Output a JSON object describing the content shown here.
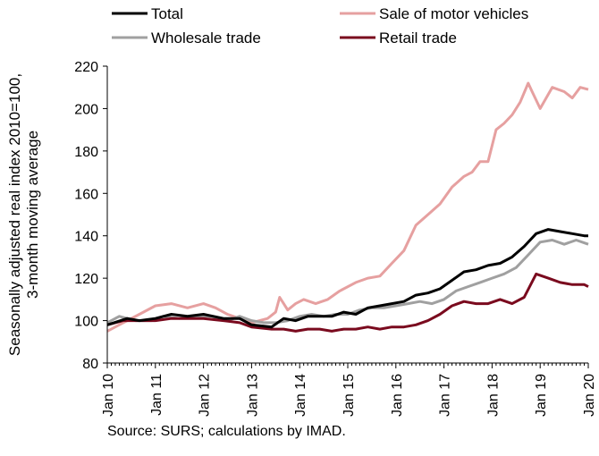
{
  "chart_data": {
    "type": "line",
    "ylabel": [
      "Seasonally adjusted real index 2010=100,",
      "3-month moving average"
    ],
    "source": "Source: SURS; calculations by IMAD.",
    "ylim": [
      80,
      220
    ],
    "yticks": [
      80,
      100,
      120,
      140,
      160,
      180,
      200,
      220
    ],
    "grid": false,
    "legend_position": "top",
    "xlim": [
      "2010-01",
      "2020-01"
    ],
    "xtick_labels": [
      "Jan 10",
      "Jan 11",
      "Jan 12",
      "Jan 13",
      "Jan 14",
      "Jan 15",
      "Jan 16",
      "Jan 17",
      "Jan 18",
      "Jan 19",
      "Jan 20"
    ],
    "series": [
      {
        "name": "Total",
        "color": "#000000",
        "points": [
          [
            "2010-01",
            98
          ],
          [
            "2010-06",
            101
          ],
          [
            "2010-09",
            100
          ],
          [
            "2011-01",
            101
          ],
          [
            "2011-05",
            103
          ],
          [
            "2011-09",
            102
          ],
          [
            "2012-01",
            103
          ],
          [
            "2012-06",
            101
          ],
          [
            "2012-10",
            101
          ],
          [
            "2013-01",
            98
          ],
          [
            "2013-06",
            97
          ],
          [
            "2013-09",
            101
          ],
          [
            "2013-12",
            100
          ],
          [
            "2014-03",
            102
          ],
          [
            "2014-06",
            102
          ],
          [
            "2014-09",
            102
          ],
          [
            "2014-12",
            104
          ],
          [
            "2015-03",
            103
          ],
          [
            "2015-06",
            106
          ],
          [
            "2015-09",
            107
          ],
          [
            "2015-12",
            108
          ],
          [
            "2016-03",
            109
          ],
          [
            "2016-06",
            112
          ],
          [
            "2016-09",
            113
          ],
          [
            "2016-12",
            115
          ],
          [
            "2017-03",
            119
          ],
          [
            "2017-06",
            123
          ],
          [
            "2017-09",
            124
          ],
          [
            "2017-12",
            126
          ],
          [
            "2018-03",
            127
          ],
          [
            "2018-06",
            130
          ],
          [
            "2018-09",
            135
          ],
          [
            "2018-12",
            141
          ],
          [
            "2019-03",
            143
          ],
          [
            "2019-06",
            142
          ],
          [
            "2019-09",
            141
          ],
          [
            "2019-12",
            140
          ],
          [
            "2020-01",
            140
          ]
        ]
      },
      {
        "name": "Wholesale trade",
        "color": "#a0a0a0",
        "points": [
          [
            "2010-01",
            99
          ],
          [
            "2010-04",
            102
          ],
          [
            "2010-08",
            100
          ],
          [
            "2010-12",
            100
          ],
          [
            "2011-03",
            102
          ],
          [
            "2011-07",
            101
          ],
          [
            "2011-11",
            102
          ],
          [
            "2012-03",
            102
          ],
          [
            "2012-07",
            100
          ],
          [
            "2012-10",
            102
          ],
          [
            "2013-01",
            100
          ],
          [
            "2013-04",
            99
          ],
          [
            "2013-07",
            99
          ],
          [
            "2013-10",
            100
          ],
          [
            "2014-01",
            102
          ],
          [
            "2014-04",
            103
          ],
          [
            "2014-07",
            102
          ],
          [
            "2014-10",
            103
          ],
          [
            "2015-01",
            103
          ],
          [
            "2015-04",
            105
          ],
          [
            "2015-07",
            106
          ],
          [
            "2015-10",
            106
          ],
          [
            "2016-01",
            107
          ],
          [
            "2016-04",
            108
          ],
          [
            "2016-07",
            109
          ],
          [
            "2016-10",
            108
          ],
          [
            "2017-01",
            110
          ],
          [
            "2017-04",
            114
          ],
          [
            "2017-07",
            116
          ],
          [
            "2017-10",
            118
          ],
          [
            "2018-01",
            120
          ],
          [
            "2018-04",
            122
          ],
          [
            "2018-07",
            125
          ],
          [
            "2018-10",
            131
          ],
          [
            "2019-01",
            137
          ],
          [
            "2019-04",
            138
          ],
          [
            "2019-07",
            136
          ],
          [
            "2019-10",
            138
          ],
          [
            "2020-01",
            136
          ]
        ]
      },
      {
        "name": "Sale of motor vehicles",
        "color": "#e6a0a0",
        "points": [
          [
            "2010-01",
            95
          ],
          [
            "2010-05",
            99
          ],
          [
            "2010-09",
            103
          ],
          [
            "2011-01",
            107
          ],
          [
            "2011-05",
            108
          ],
          [
            "2011-09",
            106
          ],
          [
            "2012-01",
            108
          ],
          [
            "2012-04",
            106
          ],
          [
            "2012-07",
            103
          ],
          [
            "2012-10",
            101
          ],
          [
            "2013-01",
            99
          ],
          [
            "2013-05",
            101
          ],
          [
            "2013-07",
            104
          ],
          [
            "2013-08",
            111
          ],
          [
            "2013-09",
            108
          ],
          [
            "2013-10",
            105
          ],
          [
            "2013-12",
            108
          ],
          [
            "2014-02",
            110
          ],
          [
            "2014-05",
            108
          ],
          [
            "2014-08",
            110
          ],
          [
            "2014-11",
            114
          ],
          [
            "2015-03",
            118
          ],
          [
            "2015-06",
            120
          ],
          [
            "2015-09",
            121
          ],
          [
            "2015-12",
            127
          ],
          [
            "2016-03",
            133
          ],
          [
            "2016-06",
            145
          ],
          [
            "2016-09",
            150
          ],
          [
            "2016-12",
            155
          ],
          [
            "2017-03",
            163
          ],
          [
            "2017-06",
            168
          ],
          [
            "2017-08",
            170
          ],
          [
            "2017-10",
            175
          ],
          [
            "2017-12",
            175
          ],
          [
            "2018-02",
            190
          ],
          [
            "2018-04",
            193
          ],
          [
            "2018-06",
            197
          ],
          [
            "2018-08",
            203
          ],
          [
            "2018-10",
            212
          ],
          [
            "2018-11",
            208
          ],
          [
            "2019-01",
            200
          ],
          [
            "2019-04",
            210
          ],
          [
            "2019-07",
            208
          ],
          [
            "2019-09",
            205
          ],
          [
            "2019-11",
            210
          ],
          [
            "2020-01",
            209
          ]
        ]
      },
      {
        "name": "Retail trade",
        "color": "#7a0a1e",
        "points": [
          [
            "2010-01",
            98
          ],
          [
            "2010-05",
            100
          ],
          [
            "2010-09",
            100
          ],
          [
            "2011-01",
            100
          ],
          [
            "2011-05",
            101
          ],
          [
            "2011-09",
            101
          ],
          [
            "2012-01",
            101
          ],
          [
            "2012-06",
            100
          ],
          [
            "2012-10",
            99
          ],
          [
            "2013-01",
            97
          ],
          [
            "2013-06",
            96
          ],
          [
            "2013-09",
            96
          ],
          [
            "2013-12",
            95
          ],
          [
            "2014-03",
            96
          ],
          [
            "2014-06",
            96
          ],
          [
            "2014-09",
            95
          ],
          [
            "2014-12",
            96
          ],
          [
            "2015-03",
            96
          ],
          [
            "2015-06",
            97
          ],
          [
            "2015-09",
            96
          ],
          [
            "2015-12",
            97
          ],
          [
            "2016-03",
            97
          ],
          [
            "2016-06",
            98
          ],
          [
            "2016-09",
            100
          ],
          [
            "2016-12",
            103
          ],
          [
            "2017-03",
            107
          ],
          [
            "2017-06",
            109
          ],
          [
            "2017-09",
            108
          ],
          [
            "2017-12",
            108
          ],
          [
            "2018-03",
            110
          ],
          [
            "2018-06",
            108
          ],
          [
            "2018-09",
            111
          ],
          [
            "2018-12",
            122
          ],
          [
            "2019-03",
            120
          ],
          [
            "2019-06",
            118
          ],
          [
            "2019-09",
            117
          ],
          [
            "2019-12",
            117
          ],
          [
            "2020-01",
            116
          ]
        ]
      }
    ],
    "legend_order": [
      "Total",
      "Sale of motor vehicles",
      "Wholesale trade",
      "Retail trade"
    ]
  }
}
